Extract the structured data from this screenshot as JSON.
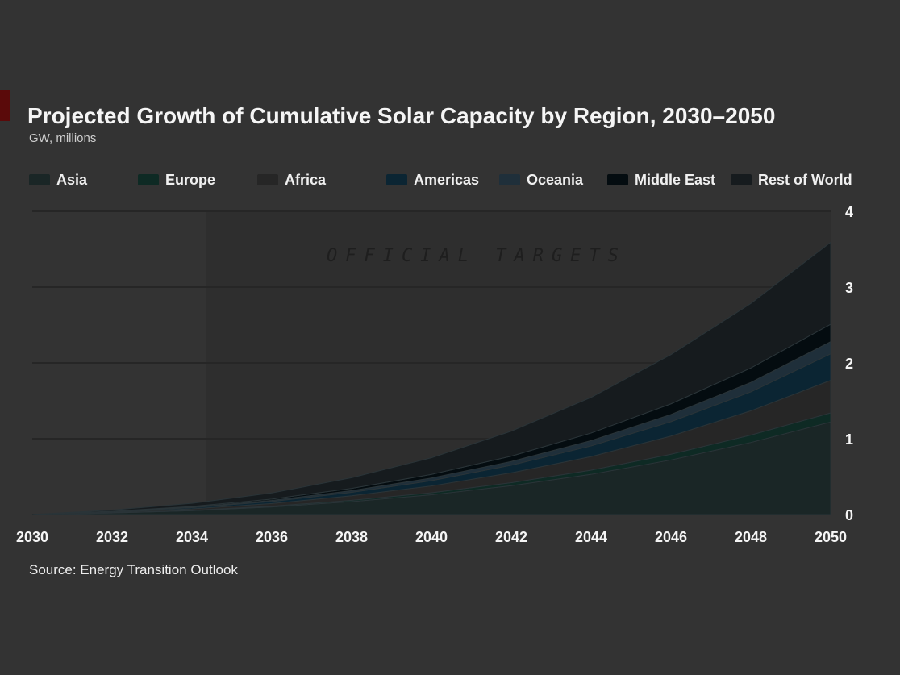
{
  "chart_data": {
    "type": "area",
    "stacked": true,
    "title": "Projected Growth of Cumulative Solar Capacity by Region, 2030–2050",
    "subtitle": "GW, millions",
    "source": "Source: Energy Transition Outlook",
    "annotation": "OFFICIAL TARGETS",
    "x": [
      2030,
      2032,
      2034,
      2036,
      2038,
      2040,
      2042,
      2044,
      2046,
      2048,
      2050
    ],
    "xlim": [
      2030,
      2050
    ],
    "ylim": [
      0,
      4
    ],
    "yticks": [
      0,
      1,
      2,
      3,
      4
    ],
    "ytick_labels": [
      "0",
      "1",
      "2",
      "3",
      "4"
    ],
    "grid": true,
    "legend_position": "top",
    "series": [
      {
        "name": "Asia",
        "color": "#1a2626",
        "values": [
          0,
          0.02,
          0.05,
          0.1,
          0.17,
          0.26,
          0.38,
          0.53,
          0.72,
          0.95,
          1.22
        ]
      },
      {
        "name": "Europe",
        "color": "#0e2a24",
        "values": [
          0,
          0.002,
          0.005,
          0.01,
          0.017,
          0.027,
          0.04,
          0.055,
          0.075,
          0.098,
          0.12
        ]
      },
      {
        "name": "Africa",
        "color": "#262626",
        "values": [
          0,
          0.008,
          0.02,
          0.035,
          0.06,
          0.09,
          0.13,
          0.18,
          0.24,
          0.32,
          0.43
        ]
      },
      {
        "name": "Americas",
        "color": "#0b2533",
        "values": [
          0,
          0.006,
          0.015,
          0.027,
          0.045,
          0.07,
          0.1,
          0.14,
          0.19,
          0.25,
          0.35
        ]
      },
      {
        "name": "Oceania",
        "color": "#1f2f3a",
        "values": [
          0,
          0.003,
          0.007,
          0.014,
          0.023,
          0.035,
          0.05,
          0.07,
          0.095,
          0.125,
          0.16
        ]
      },
      {
        "name": "Middle East",
        "color": "#040c10",
        "values": [
          0,
          0.004,
          0.01,
          0.018,
          0.03,
          0.047,
          0.07,
          0.1,
          0.14,
          0.19,
          0.23
        ]
      },
      {
        "name": "Rest of World",
        "color": "#161b1e",
        "values": [
          0,
          0.015,
          0.04,
          0.08,
          0.14,
          0.22,
          0.33,
          0.47,
          0.65,
          0.85,
          1.08
        ]
      }
    ]
  }
}
